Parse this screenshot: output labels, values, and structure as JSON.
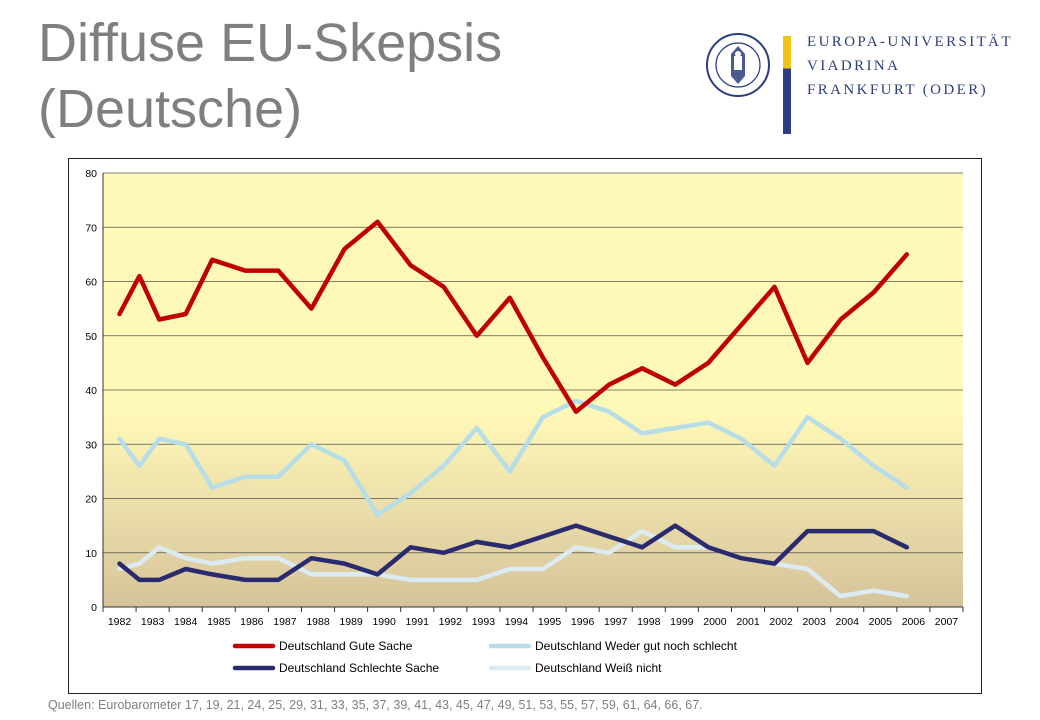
{
  "slide": {
    "title_line1": "Diffuse EU-Skepsis",
    "title_line2": "(Deutsche)",
    "source": "Quellen: Eurobarometer 17, 19, 21, 24, 25, 29, 31, 33, 35, 37, 39, 41, 43, 45, 47, 49, 51, 53, 55, 57, 59, 61, 64, 66, 67."
  },
  "logo": {
    "line1": "EUROPA-UNIVERSITÄT",
    "line2": "VIADRINA",
    "line3": "FRANKFURT (ODER)",
    "seal_text": "EUROPA UNIVERSITÄT VIADRINA",
    "colors": {
      "blue": "#2c3e7f",
      "gold": "#f2c418"
    }
  },
  "chart_data": {
    "type": "line",
    "title": "",
    "xlabel": "",
    "ylabel": "",
    "categories": [
      "1982",
      "1983",
      "1984",
      "1985",
      "1986",
      "1987",
      "1988",
      "1989",
      "1990",
      "1991",
      "1992",
      "1993",
      "1994",
      "1995",
      "1996",
      "1997",
      "1998",
      "1999",
      "2000",
      "2001",
      "2002",
      "2003",
      "2004",
      "2005",
      "2006",
      "2007"
    ],
    "ylim": [
      0,
      80
    ],
    "yticks": [
      0,
      10,
      20,
      30,
      40,
      50,
      60,
      70,
      80
    ],
    "grid": true,
    "legend_position": "bottom",
    "plot_background": {
      "top": "#fff9b8",
      "bottom": "#d6c39a"
    },
    "points": [
      {
        "x": 1982.0,
        "gut": 54,
        "weder": 31,
        "schlecht": 8,
        "weiss": 7
      },
      {
        "x": 1982.6,
        "gut": 61,
        "weder": 26,
        "schlecht": 5,
        "weiss": 8
      },
      {
        "x": 1983.2,
        "gut": 53,
        "weder": 31,
        "schlecht": 5,
        "weiss": 11
      },
      {
        "x": 1984.0,
        "gut": 54,
        "weder": 30,
        "schlecht": 7,
        "weiss": 9
      },
      {
        "x": 1984.8,
        "gut": 64,
        "weder": 22,
        "schlecht": 6,
        "weiss": 8
      },
      {
        "x": 1985.8,
        "gut": 62,
        "weder": 24,
        "schlecht": 5,
        "weiss": 9
      },
      {
        "x": 1986.8,
        "gut": 62,
        "weder": 24,
        "schlecht": 5,
        "weiss": 9
      },
      {
        "x": 1987.8,
        "gut": 55,
        "weder": 30,
        "schlecht": 9,
        "weiss": 6
      },
      {
        "x": 1988.8,
        "gut": 66,
        "weder": 27,
        "schlecht": 8,
        "weiss": 6
      },
      {
        "x": 1989.8,
        "gut": 71,
        "weder": 17,
        "schlecht": 6,
        "weiss": 6
      },
      {
        "x": 1990.8,
        "gut": 63,
        "weder": 21,
        "schlecht": 11,
        "weiss": 5
      },
      {
        "x": 1991.8,
        "gut": 59,
        "weder": 26,
        "schlecht": 10,
        "weiss": 5
      },
      {
        "x": 1992.8,
        "gut": 50,
        "weder": 33,
        "schlecht": 12,
        "weiss": 5
      },
      {
        "x": 1993.8,
        "gut": 57,
        "weder": 25,
        "schlecht": 11,
        "weiss": 7
      },
      {
        "x": 1994.8,
        "gut": 46,
        "weder": 35,
        "schlecht": 13,
        "weiss": 7
      },
      {
        "x": 1995.8,
        "gut": 36,
        "weder": 38,
        "schlecht": 15,
        "weiss": 11
      },
      {
        "x": 1996.8,
        "gut": 41,
        "weder": 36,
        "schlecht": 13,
        "weiss": 10
      },
      {
        "x": 1997.8,
        "gut": 44,
        "weder": 32,
        "schlecht": 11,
        "weiss": 14
      },
      {
        "x": 1998.8,
        "gut": 41,
        "weder": 33,
        "schlecht": 15,
        "weiss": 11
      },
      {
        "x": 1999.8,
        "gut": 45,
        "weder": 34,
        "schlecht": 11,
        "weiss": 11
      },
      {
        "x": 2000.8,
        "gut": 52,
        "weder": 31,
        "schlecht": 9,
        "weiss": 9
      },
      {
        "x": 2001.8,
        "gut": 59,
        "weder": 26,
        "schlecht": 8,
        "weiss": 8
      },
      {
        "x": 2002.8,
        "gut": 45,
        "weder": 35,
        "schlecht": 14,
        "weiss": 7
      },
      {
        "x": 2003.8,
        "gut": 53,
        "weder": 31,
        "schlecht": 14,
        "weiss": 2
      },
      {
        "x": 2004.8,
        "gut": 58,
        "weder": 26,
        "schlecht": 14,
        "weiss": 3
      },
      {
        "x": 2005.8,
        "gut": 65,
        "weder": 22,
        "schlecht": 11,
        "weiss": 2
      }
    ],
    "series": [
      {
        "key": "gut",
        "name": "Deutschland Gute Sache",
        "color": "#c00000"
      },
      {
        "key": "weder",
        "name": "Deutschland Weder gut noch schlecht",
        "color": "#b7dde8"
      },
      {
        "key": "schlecht",
        "name": "Deutschland Schlechte Sache",
        "color": "#2a2a6e"
      },
      {
        "key": "weiss",
        "name": "Deutschland Weiß nicht",
        "color": "#dcebf2"
      }
    ]
  }
}
